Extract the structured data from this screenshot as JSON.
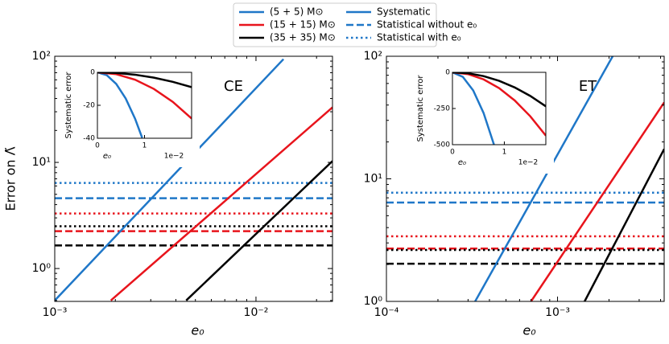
{
  "legend": {
    "masses": [
      {
        "name": "(5 + 5) M⊙",
        "color": "#1f77c8"
      },
      {
        "name": "(15 + 15) M⊙",
        "color": "#e8141c"
      },
      {
        "name": "(35 + 35) M⊙",
        "color": "#000000"
      }
    ],
    "styles": [
      {
        "name": "Systematic",
        "style": "solid"
      },
      {
        "name": "Statistical without e₀",
        "style": "dashed"
      },
      {
        "name": "Statistical with e₀",
        "style": "dotted"
      }
    ]
  },
  "chart_data": [
    {
      "type": "line",
      "title": "CE",
      "xlabel": "e₀",
      "ylabel": "Error on Λ̃",
      "xlog": true,
      "ylog": true,
      "xlim": [
        0.001,
        0.024
      ],
      "ylim": [
        0.49,
        100
      ],
      "xticks": [
        {
          "value": 0.001,
          "label": "10⁻³"
        },
        {
          "value": 0.01,
          "label": "10⁻²"
        }
      ],
      "yticks": [
        {
          "value": 1,
          "label": "10⁰"
        },
        {
          "value": 10,
          "label": "10¹"
        },
        {
          "value": 100,
          "label": "10²"
        }
      ],
      "series": [
        {
          "color": "#1f77c8",
          "style": "solid",
          "x": [
            0.001,
            0.0137
          ],
          "values": [
            0.5,
            94
          ]
        },
        {
          "color": "#e8141c",
          "style": "solid",
          "x": [
            0.0019,
            0.024
          ],
          "values": [
            0.5,
            33
          ]
        },
        {
          "color": "#000000",
          "style": "solid",
          "x": [
            0.0045,
            0.024
          ],
          "values": [
            0.5,
            10.3
          ]
        }
      ],
      "levels": [
        {
          "color": "#1f77c8",
          "style": "dotted",
          "value": 6.4
        },
        {
          "color": "#1f77c8",
          "style": "dashed",
          "value": 4.6
        },
        {
          "color": "#e8141c",
          "style": "dotted",
          "value": 3.3
        },
        {
          "color": "#000000",
          "style": "dotted",
          "value": 2.5
        },
        {
          "color": "#e8141c",
          "style": "dashed",
          "value": 2.25
        },
        {
          "color": "#000000",
          "style": "dashed",
          "value": 1.65
        }
      ],
      "inset": {
        "ylabel": "Systematic error",
        "xlabel": "e₀",
        "x_offset": "1e−2",
        "xlim": [
          0,
          2
        ],
        "ylim": [
          -40,
          0
        ],
        "xticks": [
          0,
          1
        ],
        "yticks": [
          0,
          -20,
          -40
        ],
        "series": [
          {
            "color": "#1f77c8",
            "x": [
              0,
              0.2,
              0.4,
              0.6,
              0.8,
              0.95
            ],
            "values": [
              0,
              -1.76,
              -7.04,
              -15.84,
              -28.16,
              -39.71
            ]
          },
          {
            "color": "#e8141c",
            "x": [
              0,
              0.4,
              0.8,
              1.2,
              1.6,
              2.0
            ],
            "values": [
              0,
              -1.12,
              -4.48,
              -10.08,
              -17.92,
              -28
            ]
          },
          {
            "color": "#000000",
            "x": [
              0,
              0.4,
              0.8,
              1.2,
              1.6,
              2.0
            ],
            "values": [
              0,
              -0.36,
              -1.44,
              -3.24,
              -5.76,
              -9
            ]
          }
        ]
      }
    },
    {
      "type": "line",
      "title": "ET",
      "xlabel": "e₀",
      "xlog": true,
      "ylog": true,
      "xlim": [
        0.0001,
        0.0042
      ],
      "ylim": [
        1,
        100
      ],
      "xticks": [
        {
          "value": 0.0001,
          "label": "10⁻⁴"
        },
        {
          "value": 0.001,
          "label": "10⁻³"
        }
      ],
      "yticks": [
        {
          "value": 1,
          "label": "10⁰"
        },
        {
          "value": 10,
          "label": "10¹"
        },
        {
          "value": 100,
          "label": "10²"
        }
      ],
      "series": [
        {
          "color": "#1f77c8",
          "style": "solid",
          "x": [
            0.00033,
            0.0021
          ],
          "values": [
            1,
            100
          ]
        },
        {
          "color": "#e8141c",
          "style": "solid",
          "x": [
            0.0007,
            0.0042
          ],
          "values": [
            1,
            42
          ]
        },
        {
          "color": "#000000",
          "style": "solid",
          "x": [
            0.00144,
            0.0042
          ],
          "values": [
            1,
            17.5
          ]
        }
      ],
      "levels": [
        {
          "color": "#1f77c8",
          "style": "dotted",
          "value": 7.7
        },
        {
          "color": "#1f77c8",
          "style": "dashed",
          "value": 6.4
        },
        {
          "color": "#e8141c",
          "style": "dotted",
          "value": 3.4
        },
        {
          "color": "#e8141c",
          "style": "dashed",
          "value": 2.7
        },
        {
          "color": "#000000",
          "style": "dotted",
          "value": 2.63
        },
        {
          "color": "#000000",
          "style": "dashed",
          "value": 2.03
        }
      ],
      "inset": {
        "ylabel": "Systematic error",
        "xlabel": "e₀",
        "x_offset": "1e−2",
        "xlim": [
          0,
          1.8
        ],
        "ylim": [
          -500,
          0
        ],
        "xticks": [
          0,
          1
        ],
        "yticks": [
          0,
          -250,
          -500
        ],
        "series": [
          {
            "color": "#1f77c8",
            "x": [
              0,
              0.2,
              0.4,
              0.6,
              0.8
            ],
            "values": [
              0,
              -31.2,
              -124.8,
              -280.8,
              -499.2
            ]
          },
          {
            "color": "#e8141c",
            "x": [
              0,
              0.3,
              0.6,
              0.9,
              1.2,
              1.5,
              1.8
            ],
            "values": [
              0,
              -12.2,
              -48.6,
              -109.4,
              -194.4,
              -303.8,
              -437.4
            ]
          },
          {
            "color": "#000000",
            "x": [
              0,
              0.3,
              0.6,
              0.9,
              1.2,
              1.5,
              1.8
            ],
            "values": [
              0,
              -6.5,
              -26.1,
              -58.7,
              -104.4,
              -163.1,
              -234.9
            ]
          }
        ]
      }
    }
  ]
}
